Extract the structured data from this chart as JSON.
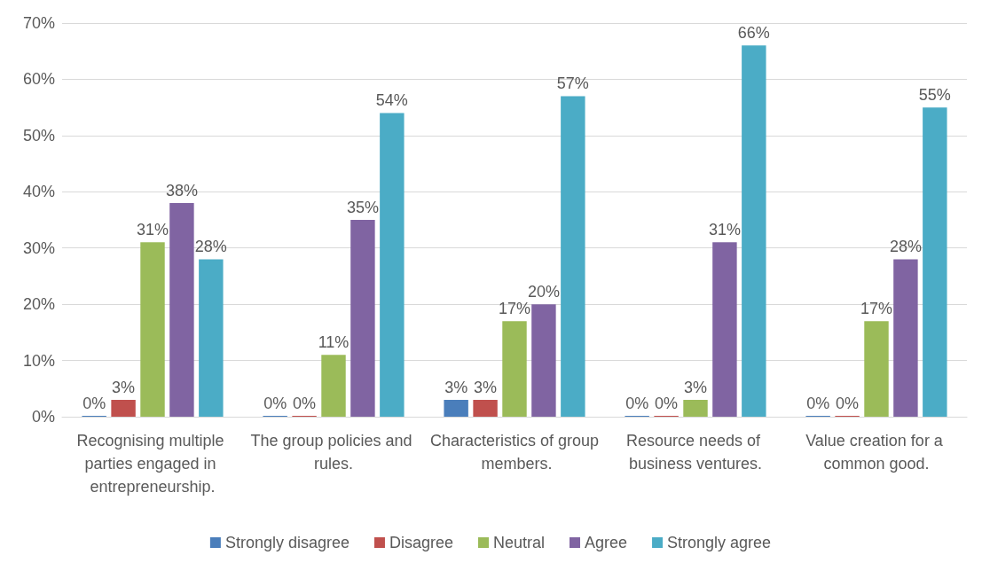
{
  "chart_data": {
    "type": "bar",
    "categories": [
      "Recognising multiple parties engaged in entrepreneurship.",
      "The group policies and rules.",
      "Characteristics of group members.",
      "Resource needs of business ventures.",
      "Value creation for a common good."
    ],
    "series": [
      {
        "name": "Strongly disagree",
        "color": "#4a7ebb",
        "values": [
          0,
          0,
          3,
          0,
          0
        ],
        "value_labels": [
          "0%",
          "0%",
          "3%",
          "0%",
          "0%"
        ]
      },
      {
        "name": "Disagree",
        "color": "#c0504d",
        "values": [
          3,
          0,
          3,
          0,
          0
        ],
        "value_labels": [
          "3%",
          "0%",
          "3%",
          "0%",
          "0%"
        ]
      },
      {
        "name": "Neutral",
        "color": "#9bbb59",
        "values": [
          31,
          11,
          17,
          3,
          17
        ],
        "value_labels": [
          "31%",
          "11%",
          "17%",
          "3%",
          "17%"
        ]
      },
      {
        "name": "Agree",
        "color": "#8064a2",
        "values": [
          38,
          35,
          20,
          31,
          28
        ],
        "value_labels": [
          "38%",
          "35%",
          "20%",
          "31%",
          "28%"
        ]
      },
      {
        "name": "Strongly agree",
        "color": "#4bacc6",
        "values": [
          28,
          54,
          57,
          66,
          55
        ],
        "value_labels": [
          "28%",
          "54%",
          "57%",
          "66%",
          "55%"
        ]
      }
    ],
    "ylim": [
      0,
      70
    ],
    "yticks": [
      {
        "value": 0,
        "label": "0%"
      },
      {
        "value": 10,
        "label": "10%"
      },
      {
        "value": 20,
        "label": "20%"
      },
      {
        "value": 30,
        "label": "30%"
      },
      {
        "value": 40,
        "label": "40%"
      },
      {
        "value": 50,
        "label": "50%"
      },
      {
        "value": 60,
        "label": "60%"
      },
      {
        "value": 70,
        "label": "70%"
      }
    ],
    "grid": "y",
    "legend": "bottom"
  }
}
